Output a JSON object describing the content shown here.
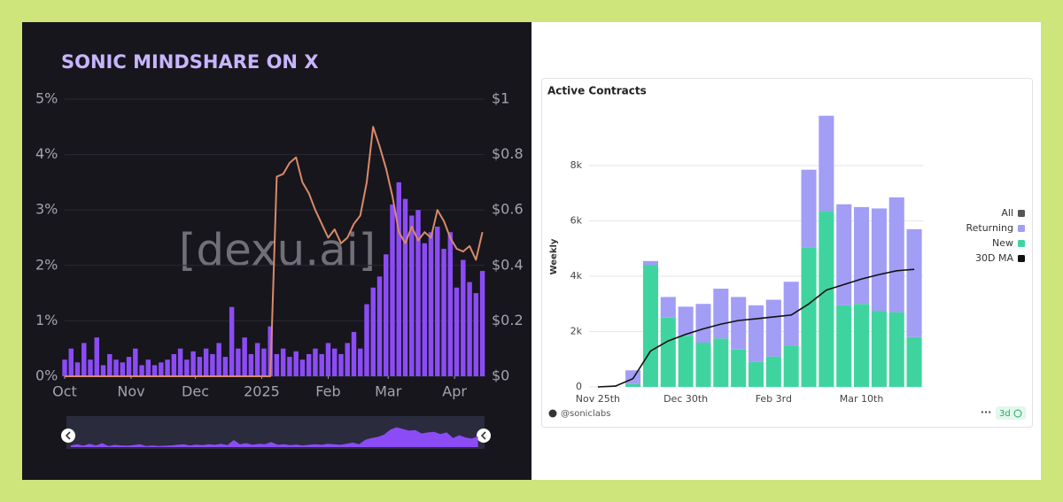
{
  "chart_data": [
    {
      "type": "bar",
      "title": "SONIC MINDSHARE ON X",
      "watermark": "[dexu.ai]",
      "x": [
        0,
        3,
        6,
        9,
        12,
        15,
        18,
        21,
        24,
        27,
        30,
        33,
        36,
        39,
        42,
        45,
        48,
        51,
        54,
        57,
        60,
        63,
        66,
        69,
        72,
        75,
        78,
        81,
        84,
        87,
        90,
        93,
        96,
        99,
        102,
        105,
        108,
        111,
        114,
        117,
        120,
        123,
        126,
        129,
        132,
        135,
        138,
        141,
        144,
        147,
        150,
        153,
        156,
        159,
        162,
        165,
        168,
        171,
        174,
        177,
        180,
        183,
        186,
        189,
        192,
        195
      ],
      "xlim": [
        0,
        196
      ],
      "xticks": [
        {
          "value": 0,
          "label": "Oct"
        },
        {
          "value": 31,
          "label": "Nov"
        },
        {
          "value": 61,
          "label": "Dec"
        },
        {
          "value": 92,
          "label": "2025"
        },
        {
          "value": 123,
          "label": "Feb"
        },
        {
          "value": 151,
          "label": "Mar"
        },
        {
          "value": 182,
          "label": "Apr"
        }
      ],
      "ylim": [
        0,
        5
      ],
      "yticks": [
        {
          "value": 0,
          "label": "0%"
        },
        {
          "value": 1,
          "label": "1%"
        },
        {
          "value": 2,
          "label": "2%"
        },
        {
          "value": 3,
          "label": "3%"
        },
        {
          "value": 4,
          "label": "4%"
        },
        {
          "value": 5,
          "label": "5%"
        }
      ],
      "y2lim": [
        0,
        1
      ],
      "y2ticks": [
        {
          "value": 0,
          "label": "$0"
        },
        {
          "value": 0.2,
          "label": "$0.2"
        },
        {
          "value": 0.4,
          "label": "$0.4"
        },
        {
          "value": 0.6,
          "label": "$0.6"
        },
        {
          "value": 0.8,
          "label": "$0.8"
        },
        {
          "value": 1,
          "label": "$1"
        }
      ],
      "grid": true,
      "series": [
        {
          "type": "bar",
          "color": "#8b4cf6",
          "values": [
            0.3,
            0.5,
            0.25,
            0.6,
            0.3,
            0.7,
            0.2,
            0.4,
            0.3,
            0.25,
            0.35,
            0.5,
            0.2,
            0.3,
            0.2,
            0.25,
            0.3,
            0.4,
            0.5,
            0.3,
            0.45,
            0.35,
            0.5,
            0.4,
            0.6,
            0.35,
            1.25,
            0.5,
            0.7,
            0.4,
            0.6,
            0.5,
            0.9,
            0.4,
            0.5,
            0.35,
            0.45,
            0.3,
            0.4,
            0.5,
            0.4,
            0.6,
            0.5,
            0.4,
            0.6,
            0.8,
            0.5,
            1.3,
            1.6,
            1.8,
            2.2,
            3.1,
            3.5,
            3.2,
            2.9,
            3.0,
            2.4,
            2.6,
            2.7,
            2.3,
            2.6,
            1.6,
            2.1,
            1.7,
            1.5,
            1.9
          ]
        },
        {
          "type": "line",
          "axis": "y2",
          "color": "#d88a6b",
          "values": [
            0,
            0,
            0,
            0,
            0,
            0,
            0,
            0,
            0,
            0,
            0,
            0,
            0,
            0,
            0,
            0,
            0,
            0,
            0,
            0,
            0,
            0,
            0,
            0,
            0,
            0,
            0,
            0,
            0,
            0,
            0,
            0,
            0,
            0.72,
            0.73,
            0.77,
            0.79,
            0.7,
            0.66,
            0.6,
            0.55,
            0.5,
            0.53,
            0.48,
            0.5,
            0.55,
            0.58,
            0.7,
            0.9,
            0.83,
            0.75,
            0.65,
            0.52,
            0.48,
            0.54,
            0.49,
            0.52,
            0.5,
            0.6,
            0.56,
            0.5,
            0.46,
            0.45,
            0.47,
            0.42,
            0.52
          ]
        }
      ]
    },
    {
      "type": "bar",
      "title": "Active Contracts",
      "y_label": "Weekly",
      "footer": "@soniclabs",
      "badge": "3d",
      "stacked": true,
      "grid": true,
      "legend": "right",
      "categories": [
        "Nov 25th",
        null,
        null,
        null,
        null,
        "Dec 30th",
        null,
        null,
        null,
        null,
        "Feb 3rd",
        null,
        null,
        null,
        null,
        "Mar 10th",
        null,
        null,
        null
      ],
      "ylim": [
        0,
        10000
      ],
      "yticks": [
        0,
        {
          "value": 2000,
          "label": "2k"
        },
        {
          "value": 4000,
          "label": "4k"
        },
        {
          "value": 6000,
          "label": "6k"
        },
        {
          "value": 8000,
          "label": "8k"
        }
      ],
      "series": [
        {
          "name": "All",
          "color": "#555555"
        },
        {
          "name": "Returning",
          "type": "bar",
          "color": "#a29df5",
          "values": [
            0,
            0,
            500,
            150,
            750,
            1050,
            1400,
            1800,
            1900,
            2050,
            2050,
            2300,
            2800,
            3450,
            3650,
            3500,
            3700,
            4150,
            3900
          ]
        },
        {
          "name": "New",
          "type": "bar",
          "color": "#3fd49f",
          "values": [
            0,
            0,
            100,
            4400,
            2500,
            1850,
            1600,
            1750,
            1350,
            900,
            1100,
            1500,
            5050,
            6350,
            2950,
            3000,
            2750,
            2700,
            1800
          ]
        },
        {
          "name": "30D MA",
          "type": "line",
          "color": "#111111",
          "values": [
            0,
            30,
            300,
            1300,
            1660,
            1900,
            2100,
            2270,
            2400,
            2460,
            2530,
            2600,
            3000,
            3500,
            3700,
            3900,
            4060,
            4200,
            4250
          ]
        }
      ]
    }
  ]
}
